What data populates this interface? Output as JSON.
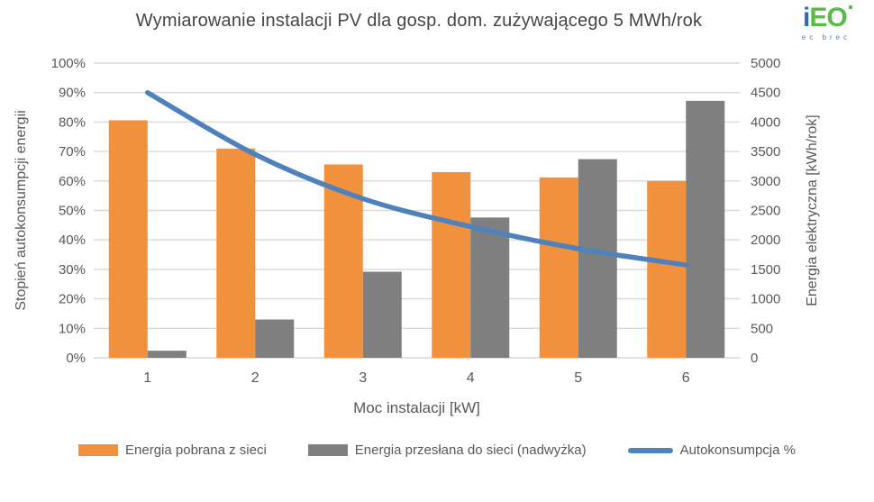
{
  "logo": {
    "i": "i",
    "eo": "EO",
    "subtext": "ec brec"
  },
  "colors": {
    "orange": "#F2913D",
    "gray": "#7F7F7F",
    "blue": "#4F81BD",
    "grid": "#D9D9D9",
    "axis_text": "#595959",
    "title_text": "#454545"
  },
  "chart_data": {
    "type": "bar",
    "subtype": "grouped bars + smoothed line overlay",
    "title": "Wymiarowanie instalacji PV dla gosp. dom. zużywającego 5 MWh/rok",
    "xlabel": "Moc instalacji [kW]",
    "ylabel_left": "Stopień autokonsumpcji energii",
    "ylabel_right": "Energia elektryczna [kWh/rok]",
    "categories": [
      "1",
      "2",
      "3",
      "4",
      "5",
      "6"
    ],
    "series": [
      {
        "name": "Energia pobrana z sieci",
        "type": "bar",
        "axis": "right",
        "color": "#F2913D",
        "values": [
          4030,
          3550,
          3280,
          3150,
          3060,
          3000
        ]
      },
      {
        "name": "Energia przesłana do sieci (nadwyżka)",
        "type": "bar",
        "axis": "right",
        "color": "#7F7F7F",
        "values": [
          120,
          650,
          1460,
          2380,
          3370,
          4360
        ]
      },
      {
        "name": "Autokonsumpcja %",
        "type": "line",
        "axis": "left",
        "color": "#4F81BD",
        "values": [
          90,
          69,
          54,
          44.5,
          37,
          31.5
        ]
      }
    ],
    "axis_left": {
      "min": 0,
      "max": 100,
      "step": 10,
      "suffix": "%"
    },
    "axis_right": {
      "min": 0,
      "max": 5000,
      "step": 500,
      "suffix": ""
    },
    "grid": true,
    "legend_position": "bottom"
  }
}
